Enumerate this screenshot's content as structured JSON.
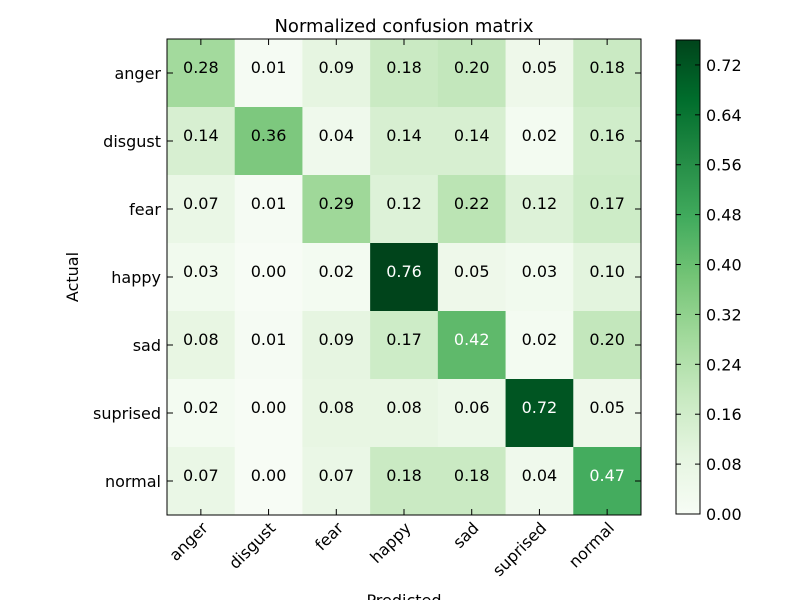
{
  "chart_data": {
    "type": "heatmap",
    "title": "Normalized confusion matrix",
    "xlabel": "Predicted",
    "ylabel": "Actual",
    "x_categories": [
      "anger",
      "disgust",
      "fear",
      "happy",
      "sad",
      "suprised",
      "normal"
    ],
    "y_categories": [
      "anger",
      "disgust",
      "fear",
      "happy",
      "sad",
      "suprised",
      "normal"
    ],
    "values": [
      [
        0.28,
        0.01,
        0.09,
        0.18,
        0.2,
        0.05,
        0.18
      ],
      [
        0.14,
        0.36,
        0.04,
        0.14,
        0.14,
        0.02,
        0.16
      ],
      [
        0.07,
        0.01,
        0.29,
        0.12,
        0.22,
        0.12,
        0.17
      ],
      [
        0.03,
        0.0,
        0.02,
        0.76,
        0.05,
        0.03,
        0.1
      ],
      [
        0.08,
        0.01,
        0.09,
        0.17,
        0.42,
        0.02,
        0.2
      ],
      [
        0.02,
        0.0,
        0.08,
        0.08,
        0.06,
        0.72,
        0.05
      ],
      [
        0.07,
        0.0,
        0.07,
        0.18,
        0.18,
        0.04,
        0.47
      ]
    ],
    "colormap": "Greens",
    "colorbar": {
      "range": [
        0.0,
        0.76
      ],
      "ticks": [
        "0.00",
        "0.08",
        "0.16",
        "0.24",
        "0.32",
        "0.40",
        "0.48",
        "0.56",
        "0.64",
        "0.72"
      ]
    }
  }
}
